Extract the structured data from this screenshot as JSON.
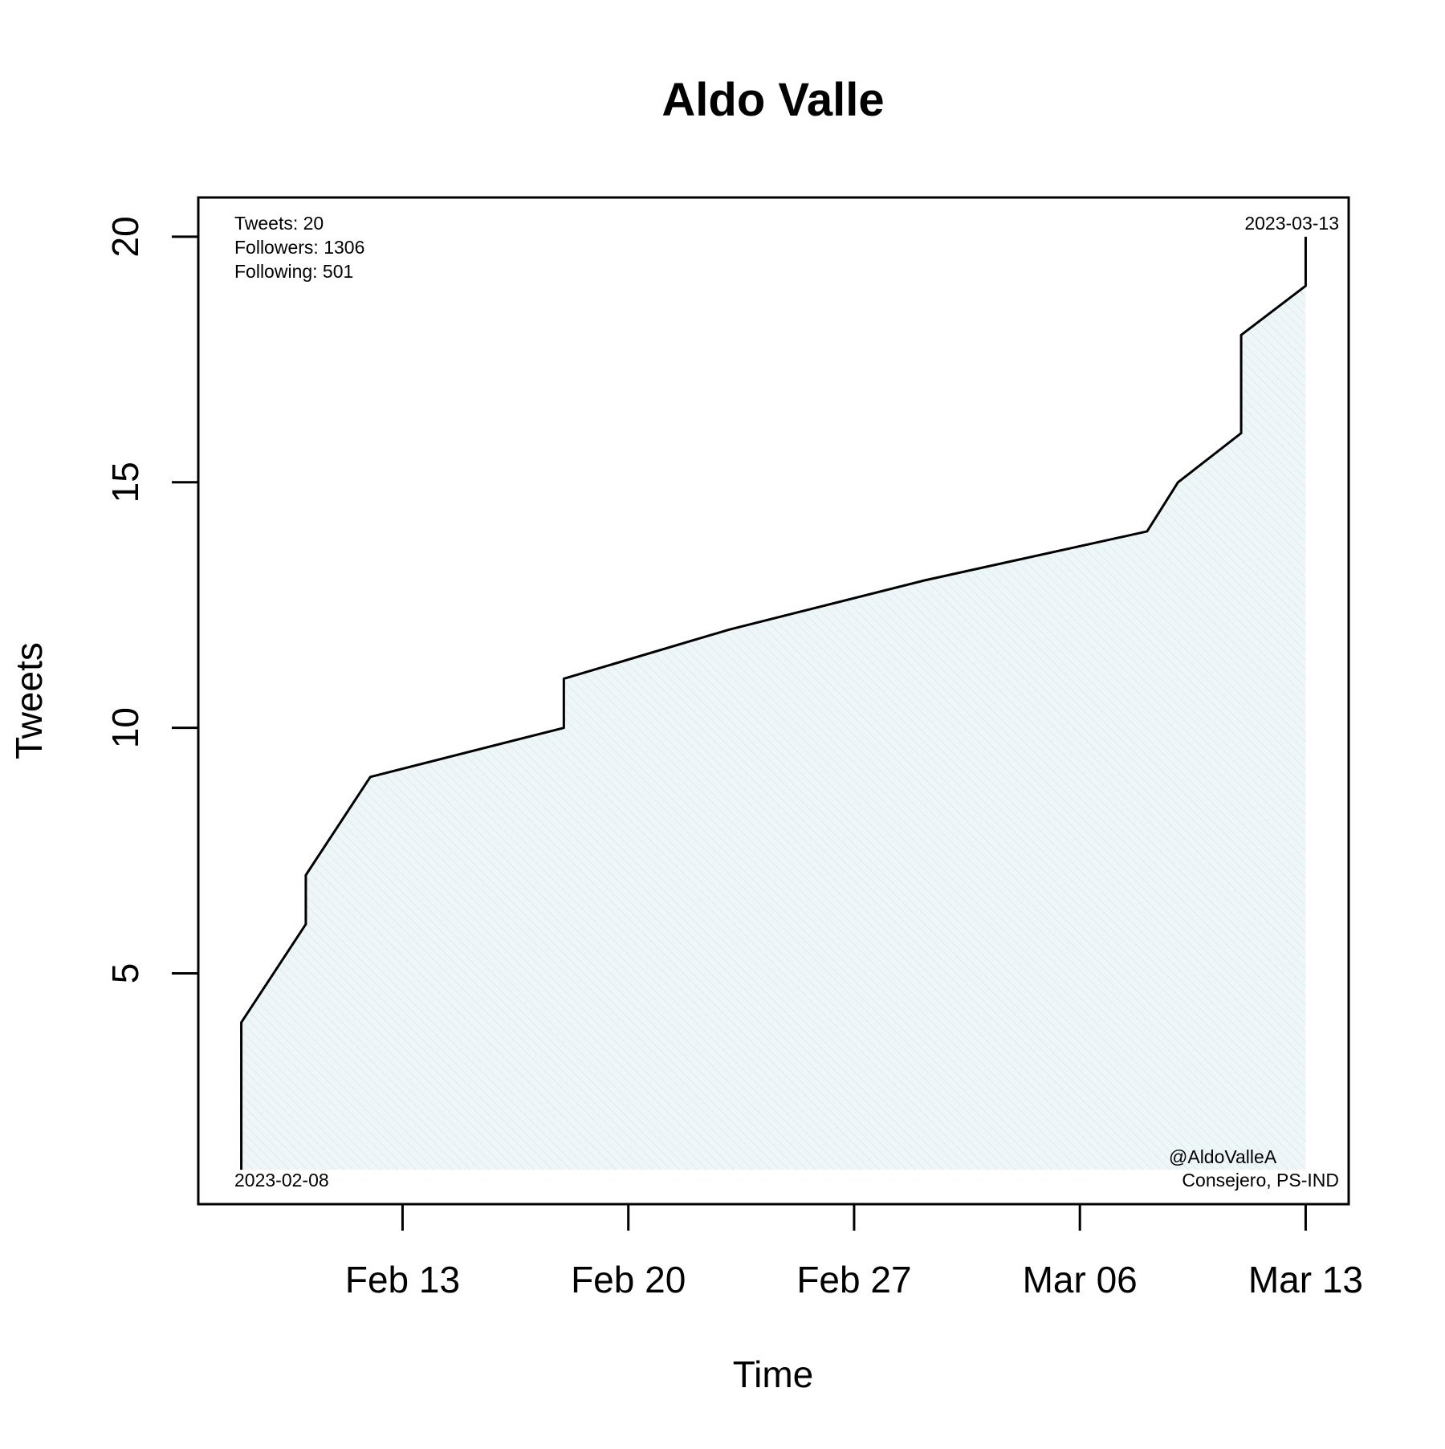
{
  "chart_data": {
    "type": "area",
    "title": "Aldo Valle",
    "xlabel": "Time",
    "ylabel": "Tweets",
    "x_ticks": [
      "Feb 13",
      "Feb 20",
      "Feb 27",
      "Mar 06",
      "Mar 13"
    ],
    "y_ticks": [
      5,
      10,
      15,
      20
    ],
    "xlim": [
      "2023-02-06T16:00",
      "2023-03-14T08:00"
    ],
    "ylim": [
      0.3,
      20.8
    ],
    "grid": false,
    "fill_color": "#e6f2f5",
    "line_color": "#000000",
    "series": [
      {
        "points": [
          {
            "x": "2023-02-08T00:00",
            "y": 1
          },
          {
            "x": "2023-02-08T00:00",
            "y": 4
          },
          {
            "x": "2023-02-10T00:00",
            "y": 6
          },
          {
            "x": "2023-02-10T00:00",
            "y": 7
          },
          {
            "x": "2023-02-12T00:00",
            "y": 9
          },
          {
            "x": "2023-02-18T00:00",
            "y": 10
          },
          {
            "x": "2023-02-18T00:00",
            "y": 11
          },
          {
            "x": "2023-02-23T03:00",
            "y": 12
          },
          {
            "x": "2023-03-01T04:00",
            "y": 13
          },
          {
            "x": "2023-03-08T02:00",
            "y": 14
          },
          {
            "x": "2023-03-09T01:00",
            "y": 15
          },
          {
            "x": "2023-03-11T00:00",
            "y": 16
          },
          {
            "x": "2023-03-11T00:00",
            "y": 18
          },
          {
            "x": "2023-03-13T00:00",
            "y": 19
          },
          {
            "x": "2023-03-13T00:00",
            "y": 20
          }
        ]
      }
    ]
  },
  "annotations": {
    "tweets": "Tweets: 20",
    "followers": "Followers: 1306",
    "following": "Following: 501",
    "end_date": "2023-03-13",
    "start_date": "2023-02-08",
    "handle": "@AldoValleA",
    "role": "Consejero, PS-IND"
  }
}
